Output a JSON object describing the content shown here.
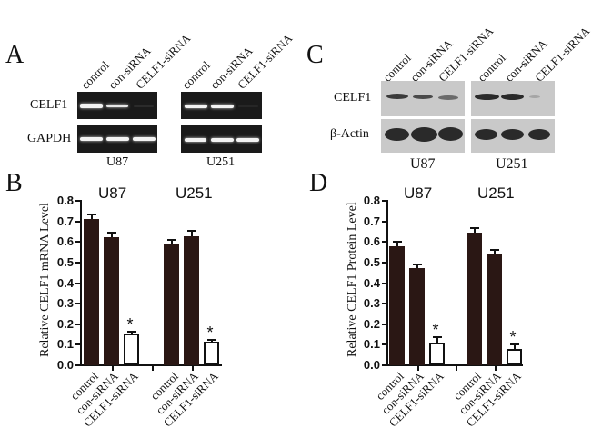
{
  "panels": {
    "A": {
      "letter": "A",
      "lanes": [
        "control",
        "con-siRNA",
        "CELF1-siRNA"
      ],
      "rows": [
        "CELF1",
        "GAPDH"
      ],
      "cells": [
        "U87",
        "U251"
      ]
    },
    "B": {
      "letter": "B"
    },
    "C": {
      "letter": "C",
      "lanes": [
        "control",
        "con-siRNA",
        "CELF1-siRNA"
      ],
      "rows": [
        "CELF1",
        "β-Actin"
      ],
      "cells": [
        "U87",
        "U251"
      ]
    },
    "D": {
      "letter": "D"
    }
  },
  "colors": {
    "dark_bar": "#2a1714",
    "light_bar": "#ffffff",
    "gel_bg": "#1a1a1a",
    "blot_bg": "#c9c9c9"
  },
  "chart_data": [
    {
      "panel": "B",
      "type": "bar",
      "title": "",
      "group_titles": [
        "U87",
        "U251"
      ],
      "categories": [
        "control",
        "con-siRNA",
        "CELF1-siRNA"
      ],
      "series": [
        {
          "name": "U87",
          "values": [
            0.71,
            0.62,
            0.15
          ],
          "errors": [
            0.025,
            0.025,
            0.012
          ],
          "significant": [
            false,
            false,
            true
          ]
        },
        {
          "name": "U251",
          "values": [
            0.59,
            0.625,
            0.11
          ],
          "errors": [
            0.022,
            0.028,
            0.015
          ],
          "significant": [
            false,
            false,
            true
          ]
        }
      ],
      "xlabel": "",
      "ylabel": "Relative CELF1 mRNA Level",
      "ylim": [
        0,
        0.8
      ],
      "yticks": [
        "0.0",
        "0.1",
        "0.2",
        "0.3",
        "0.4",
        "0.5",
        "0.6",
        "0.7",
        "0.8"
      ],
      "annotation": "*",
      "grid": false
    },
    {
      "panel": "D",
      "type": "bar",
      "title": "",
      "group_titles": [
        "U87",
        "U251"
      ],
      "categories": [
        "control",
        "con-siRNA",
        "CELF1-siRNA"
      ],
      "series": [
        {
          "name": "U87",
          "values": [
            0.575,
            0.47,
            0.105
          ],
          "errors": [
            0.027,
            0.022,
            0.033
          ],
          "significant": [
            false,
            false,
            true
          ]
        },
        {
          "name": "U251",
          "values": [
            0.64,
            0.535,
            0.075
          ],
          "errors": [
            0.027,
            0.025,
            0.025
          ],
          "significant": [
            false,
            false,
            true
          ]
        }
      ],
      "xlabel": "",
      "ylabel": "Relative CELF1 Protein Level",
      "ylim": [
        0,
        0.8
      ],
      "yticks": [
        "0.0",
        "0.1",
        "0.2",
        "0.3",
        "0.4",
        "0.5",
        "0.6",
        "0.7",
        "0.8"
      ],
      "annotation": "*",
      "grid": false
    }
  ]
}
